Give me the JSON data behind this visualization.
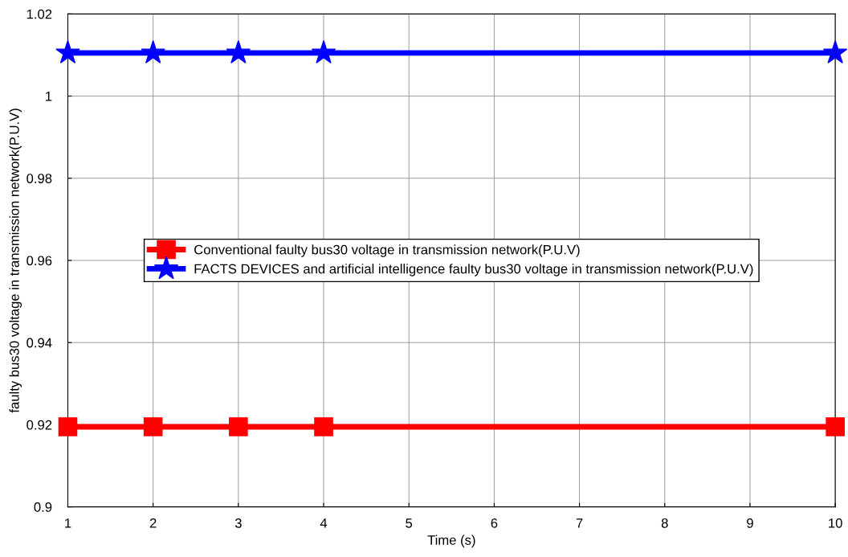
{
  "chart_data": {
    "type": "line",
    "xlabel": "Time (s)",
    "ylabel": "faulty bus30 voltage in transmission network(P.U.V)",
    "x": [
      1,
      2,
      3,
      4,
      10
    ],
    "series": [
      {
        "name": "Conventional faulty bus30 voltage in transmission network(P.U.V)",
        "color": "#ff0000",
        "marker": "square",
        "values": [
          0.9195,
          0.9195,
          0.9195,
          0.9195,
          0.9195
        ]
      },
      {
        "name": "FACTS DEVICES and artificial intelligence faulty bus30 voltage in transmission network(P.U.V)",
        "color": "#0000ff",
        "marker": "star",
        "values": [
          1.0105,
          1.0105,
          1.0105,
          1.0105,
          1.0105
        ]
      }
    ],
    "xlim": [
      1,
      10
    ],
    "xticks": [
      1,
      2,
      3,
      4,
      5,
      6,
      7,
      8,
      9,
      10
    ],
    "ylim": [
      0.9,
      1.02
    ],
    "yticks": [
      0.9,
      0.92,
      0.94,
      0.96,
      0.98,
      1,
      1.02
    ],
    "grid": true,
    "legend": "center",
    "line_style": "solid"
  }
}
